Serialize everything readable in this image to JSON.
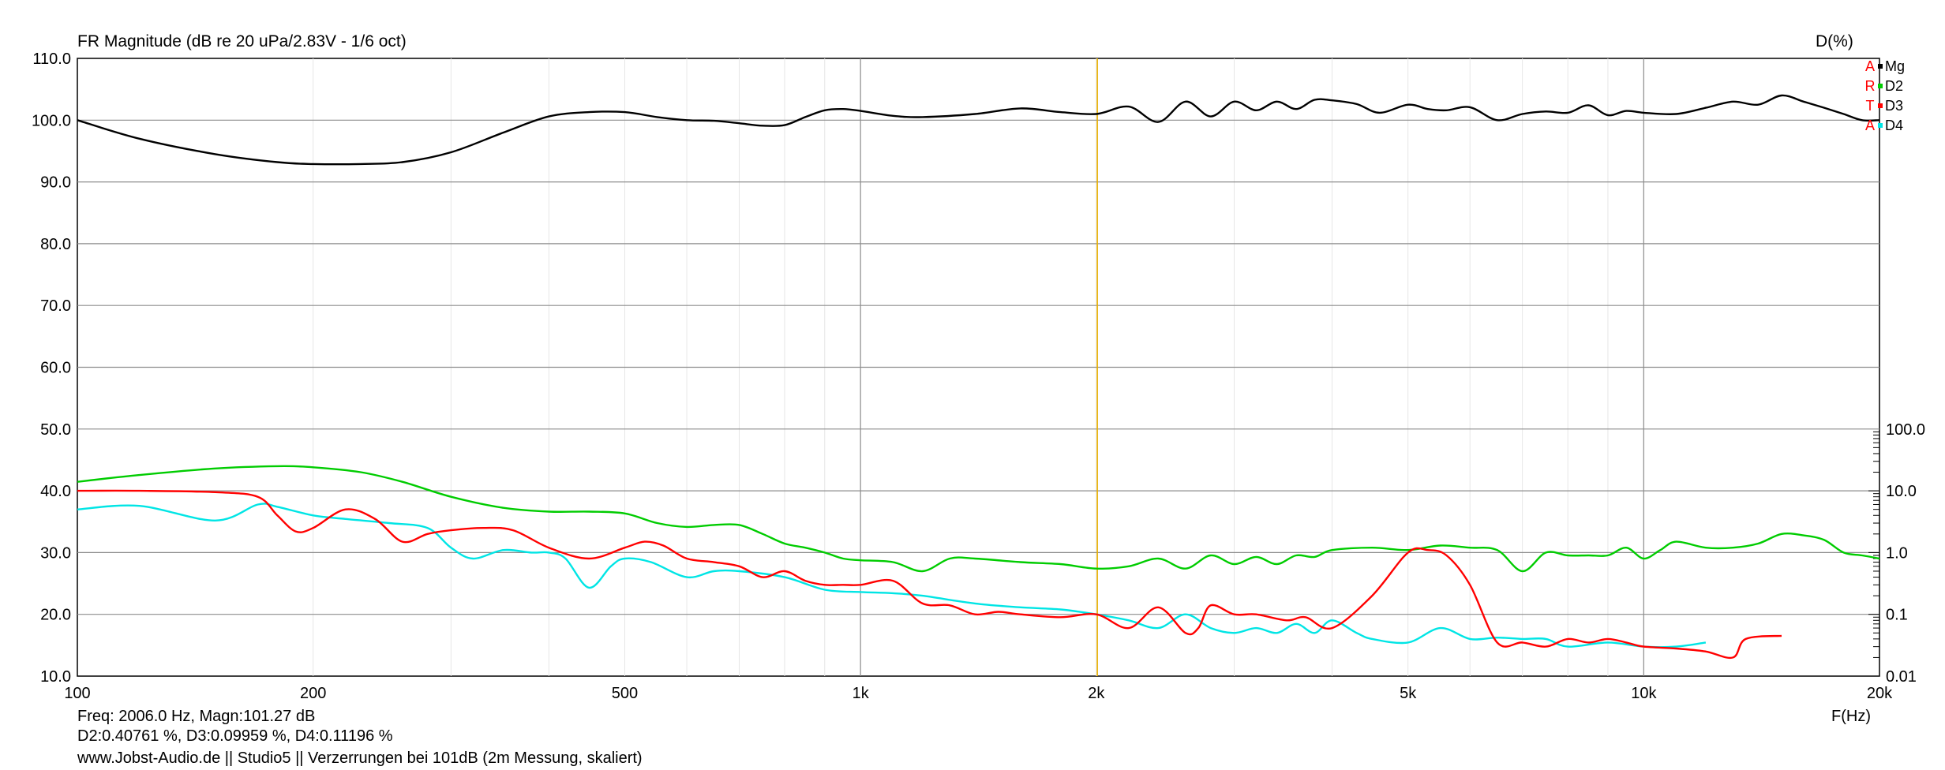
{
  "header": {
    "title": "FR Magnitude (dB re 20 uPa/2.83V - 1/6 oct)",
    "right_axis_title": "D(%)"
  },
  "legend": {
    "items": [
      {
        "key": "A",
        "label": "Mg",
        "color": "#000000"
      },
      {
        "key": "R",
        "label": "D2",
        "color": "#00cc00"
      },
      {
        "key": "T",
        "label": "D3",
        "color": "#ff0000"
      },
      {
        "key": "A",
        "label": "D4",
        "color": "#00e5e5"
      }
    ],
    "key_color": "#ff0000"
  },
  "footer": {
    "cursor_line1": "Freq: 2006.0 Hz, Magn:101.27 dB",
    "cursor_line2": "D2:0.40761 %, D3:0.09959 %, D4:0.11196 %",
    "credits": "www.Jobst-Audio.de  ||  Studio5  ||  Verzerrungen bei 101dB (2m Messung, skaliert)",
    "x_axis_unit": "F(Hz)"
  },
  "chart_data": {
    "type": "line",
    "title": "FR Magnitude (dB re 20 uPa/2.83V - 1/6 oct)",
    "xlabel": "F(Hz)",
    "ylabel": "",
    "y2label": "D(%)",
    "x_scale": "log",
    "xlim": [
      100,
      20000
    ],
    "ylim": [
      10,
      110
    ],
    "y2_scale": "log",
    "y2lim": [
      0.01,
      100
    ],
    "grid": true,
    "legend_position": "top-right",
    "x_ticks": [
      {
        "value": 100,
        "label": "100"
      },
      {
        "value": 200,
        "label": "200"
      },
      {
        "value": 500,
        "label": "500"
      },
      {
        "value": 1000,
        "label": "1k"
      },
      {
        "value": 2000,
        "label": "2k"
      },
      {
        "value": 5000,
        "label": "5k"
      },
      {
        "value": 10000,
        "label": "10k"
      },
      {
        "value": 20000,
        "label": "20k"
      }
    ],
    "y_ticks": [
      "110.0",
      "100.0",
      "90.0",
      "80.0",
      "70.0",
      "60.0",
      "50.0",
      "40.0",
      "30.0",
      "20.0",
      "10.0"
    ],
    "y2_ticks": [
      {
        "value": 100,
        "label": "100.0"
      },
      {
        "value": 10,
        "label": "10.0"
      },
      {
        "value": 1,
        "label": "1.0"
      },
      {
        "value": 0.1,
        "label": "0.1"
      },
      {
        "value": 0.01,
        "label": "0.01"
      }
    ],
    "cursor": {
      "x": 2006,
      "color": "#e8b000"
    },
    "series": [
      {
        "name": "Mg",
        "axis": "left",
        "color": "#000000",
        "x": [
          100,
          120,
          150,
          180,
          200,
          230,
          260,
          300,
          350,
          400,
          450,
          500,
          550,
          600,
          650,
          700,
          750,
          800,
          850,
          900,
          950,
          1000,
          1100,
          1200,
          1400,
          1600,
          1800,
          2000,
          2200,
          2400,
          2600,
          2800,
          3000,
          3200,
          3400,
          3600,
          3800,
          4000,
          4300,
          4600,
          5000,
          5300,
          5600,
          6000,
          6500,
          7000,
          7500,
          8000,
          8500,
          9000,
          9500,
          10000,
          11000,
          12000,
          13000,
          14000,
          15000,
          16000,
          17000,
          18000,
          19000,
          20000
        ],
        "y": [
          100,
          97,
          94.5,
          93.2,
          92.9,
          92.9,
          93.2,
          94.8,
          98,
          100.6,
          101.3,
          101.3,
          100.5,
          100,
          99.9,
          99.5,
          99.1,
          99.2,
          100.5,
          101.6,
          101.8,
          101.5,
          100.7,
          100.5,
          101,
          101.9,
          101.3,
          101,
          102.2,
          99.7,
          103,
          100.6,
          103,
          101.6,
          103,
          101.8,
          103.3,
          103.2,
          102.6,
          101.2,
          102.5,
          101.8,
          101.6,
          102.1,
          100,
          101,
          101.4,
          101.2,
          102.4,
          100.8,
          101.5,
          101.2,
          101,
          102,
          103,
          102.5,
          104,
          103,
          102,
          101,
          100,
          100
        ]
      },
      {
        "name": "D2",
        "axis": "right",
        "color": "#00cc00",
        "x": [
          100,
          120,
          150,
          180,
          200,
          230,
          260,
          300,
          350,
          400,
          450,
          500,
          550,
          600,
          650,
          700,
          750,
          800,
          850,
          900,
          950,
          1000,
          1100,
          1200,
          1300,
          1400,
          1600,
          1800,
          2000,
          2200,
          2400,
          2600,
          2800,
          3000,
          3200,
          3400,
          3600,
          3800,
          4000,
          4500,
          5000,
          5500,
          6000,
          6500,
          7000,
          7500,
          8000,
          8500,
          9000,
          9500,
          10000,
          10500,
          11000,
          12000,
          13000,
          14000,
          15000,
          16000,
          17000,
          18000,
          19000,
          20000
        ],
        "y": [
          14,
          18,
          23,
          25,
          24,
          20,
          14,
          8,
          5.3,
          4.6,
          4.6,
          4.3,
          3,
          2.6,
          2.8,
          2.8,
          2,
          1.4,
          1.2,
          1,
          0.8,
          0.75,
          0.7,
          0.5,
          0.8,
          0.8,
          0.7,
          0.65,
          0.55,
          0.6,
          0.8,
          0.55,
          0.9,
          0.65,
          0.85,
          0.65,
          0.9,
          0.85,
          1.1,
          1.2,
          1.1,
          1.3,
          1.2,
          1.1,
          0.5,
          1.0,
          0.9,
          0.9,
          0.9,
          1.2,
          0.8,
          1.1,
          1.5,
          1.2,
          1.2,
          1.4,
          2.0,
          1.9,
          1.6,
          1.0,
          0.9,
          0.8
        ]
      },
      {
        "name": "D3",
        "axis": "right",
        "color": "#ff0000",
        "x": [
          100,
          120,
          150,
          170,
          180,
          190,
          200,
          220,
          240,
          260,
          280,
          300,
          330,
          360,
          400,
          450,
          500,
          530,
          560,
          600,
          650,
          700,
          750,
          800,
          850,
          900,
          950,
          1000,
          1100,
          1200,
          1300,
          1400,
          1500,
          1600,
          1800,
          2000,
          2200,
          2400,
          2600,
          2700,
          2800,
          3000,
          3200,
          3500,
          3700,
          4000,
          4500,
          5000,
          5300,
          5600,
          6000,
          6500,
          7000,
          7500,
          8000,
          8500,
          9000,
          9500,
          10000,
          11000,
          12000,
          13000,
          13500,
          15000
        ],
        "y": [
          10,
          10,
          9.5,
          8,
          4,
          2.2,
          2.5,
          5,
          3.5,
          1.5,
          2,
          2.3,
          2.5,
          2.3,
          1.2,
          0.8,
          1.2,
          1.5,
          1.3,
          0.8,
          0.7,
          0.6,
          0.4,
          0.5,
          0.35,
          0.3,
          0.3,
          0.3,
          0.35,
          0.15,
          0.14,
          0.1,
          0.11,
          0.1,
          0.09,
          0.1,
          0.06,
          0.13,
          0.05,
          0.06,
          0.14,
          0.1,
          0.1,
          0.08,
          0.09,
          0.06,
          0.2,
          1.0,
          1.1,
          0.9,
          0.3,
          0.035,
          0.035,
          0.03,
          0.04,
          0.035,
          0.04,
          0.035,
          0.03,
          0.028,
          0.025,
          0.02,
          0.04,
          0.045
        ]
      },
      {
        "name": "D4",
        "axis": "right",
        "color": "#00e5e5",
        "x": [
          100,
          120,
          150,
          170,
          180,
          200,
          220,
          250,
          280,
          300,
          320,
          350,
          380,
          400,
          420,
          450,
          480,
          500,
          540,
          600,
          650,
          700,
          800,
          900,
          1000,
          1100,
          1200,
          1400,
          1600,
          1800,
          2000,
          2200,
          2400,
          2600,
          2800,
          3000,
          3200,
          3400,
          3600,
          3800,
          4000,
          4300,
          4500,
          5000,
          5500,
          6000,
          6500,
          7000,
          7500,
          8000,
          9000,
          10000,
          11000,
          12000
        ],
        "y": [
          5,
          5.7,
          3.3,
          6,
          5.5,
          4,
          3.5,
          3,
          2.5,
          1.2,
          0.8,
          1.1,
          1,
          1,
          0.8,
          0.27,
          0.6,
          0.8,
          0.7,
          0.4,
          0.5,
          0.5,
          0.4,
          0.25,
          0.23,
          0.22,
          0.2,
          0.15,
          0.13,
          0.12,
          0.1,
          0.08,
          0.06,
          0.1,
          0.06,
          0.05,
          0.06,
          0.05,
          0.07,
          0.05,
          0.08,
          0.05,
          0.04,
          0.035,
          0.06,
          0.04,
          0.042,
          0.04,
          0.04,
          0.03,
          0.035,
          0.03,
          0.03,
          0.035
        ]
      }
    ]
  }
}
